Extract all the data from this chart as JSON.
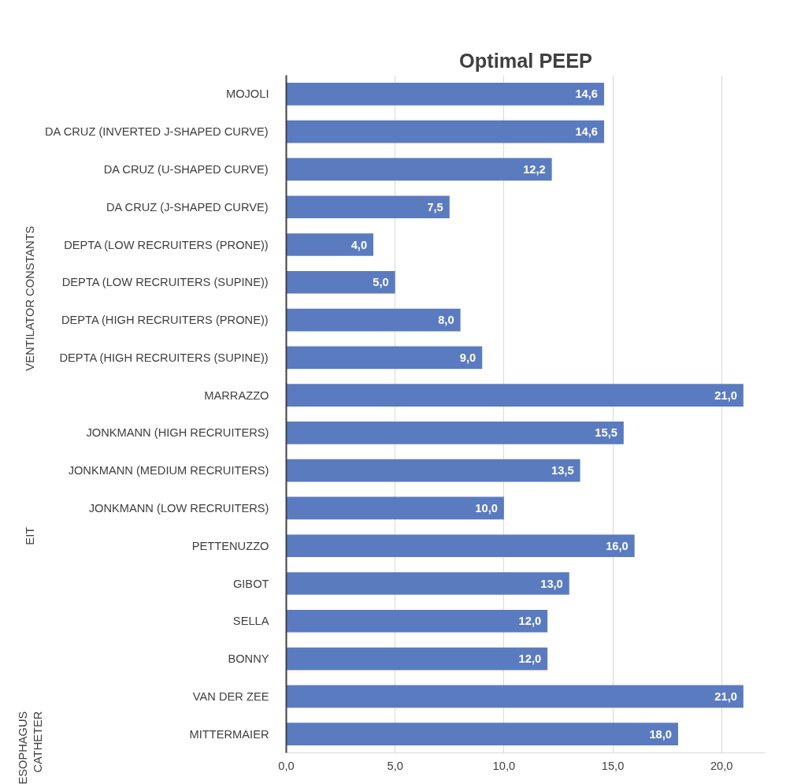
{
  "chart_data": {
    "type": "bar",
    "orientation": "horizontal",
    "title": "Optimal PEEP",
    "categories": [
      "MOJOLI",
      "DA CRUZ (INVERTED J-SHAPED CURVE)",
      "DA CRUZ (U-SHAPED CURVE)",
      "DA CRUZ (J-SHAPED CURVE)",
      "DEPTA (LOW RECRUITERS (PRONE))",
      "DEPTA (LOW RECRUITERS (SUPINE))",
      "DEPTA (HIGH RECRUITERS (PRONE))",
      "DEPTA (HIGH RECRUITERS (SUPINE))",
      "MARRAZZO",
      "JONKMANN (HIGH RECRUITERS)",
      "JONKMANN (MEDIUM RECRUITERS)",
      "JONKMANN (LOW RECRUITERS)",
      "PETTENUZZO",
      "GIBOT",
      "SELLA",
      "BONNY",
      "VAN DER ZEE",
      "MITTERMAIER"
    ],
    "values": [
      14.6,
      14.6,
      12.2,
      7.5,
      4.0,
      5.0,
      8.0,
      9.0,
      21.0,
      15.5,
      13.5,
      10.0,
      16.0,
      13.0,
      12.0,
      12.0,
      21.0,
      18.0
    ],
    "value_labels": [
      "14,6",
      "14,6",
      "12,2",
      "7,5",
      "4,0",
      "5,0",
      "8,0",
      "9,0",
      "21,0",
      "15,5",
      "13,5",
      "10,0",
      "16,0",
      "13,0",
      "12,0",
      "12,0",
      "21,0",
      "18,0"
    ],
    "color": "#5b7bc0",
    "xlim": [
      0,
      22
    ],
    "xticks": [
      {
        "value": 0,
        "label": "0,0"
      },
      {
        "value": 5,
        "label": "5,0"
      },
      {
        "value": 10,
        "label": "10,0"
      },
      {
        "value": 15,
        "label": "15,0"
      },
      {
        "value": 20,
        "label": "20,0"
      }
    ],
    "grid": "x",
    "annotations": [
      "VENTILATOR CONSTANTS",
      "EIT",
      "ESOPHAGUS CATHETER"
    ]
  }
}
